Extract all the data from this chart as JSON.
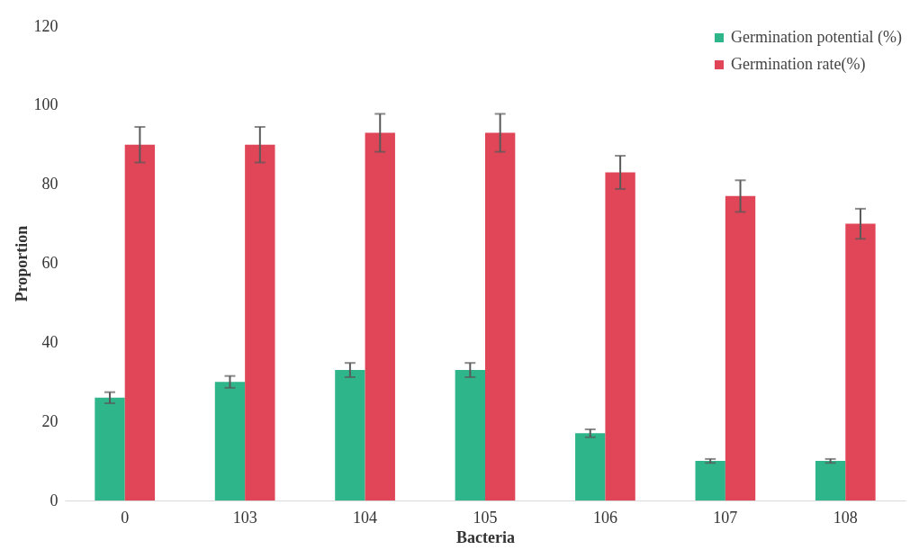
{
  "chart_data": {
    "type": "bar",
    "xlabel": "Bacteria",
    "ylabel": "Proportion",
    "categories": [
      "0",
      "103",
      "104",
      "105",
      "106",
      "107",
      "108"
    ],
    "series": [
      {
        "name": "Germination potential (%)",
        "color": "#2fb58a",
        "values": [
          26,
          30,
          33,
          33,
          17,
          10,
          10
        ],
        "errors": [
          1.4,
          1.5,
          1.8,
          1.8,
          1,
          0.5,
          0.5
        ]
      },
      {
        "name": "Germination rate(%)",
        "color": "#e04657",
        "values": [
          90,
          90,
          93,
          93,
          83,
          77,
          70
        ],
        "errors": [
          4.5,
          4.5,
          4.8,
          4.8,
          4.2,
          4,
          3.8
        ]
      }
    ],
    "ylim": [
      0,
      120
    ],
    "yticks": [
      0,
      20,
      40,
      60,
      80,
      100,
      120
    ],
    "grid": false,
    "legend": "top right"
  }
}
